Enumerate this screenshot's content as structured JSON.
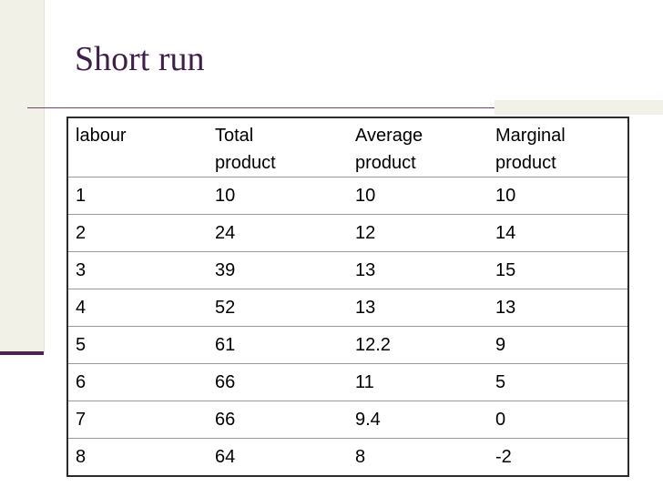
{
  "slide": {
    "title": "Short run"
  },
  "table": {
    "headers": [
      [
        "labour"
      ],
      [
        "Total",
        "product"
      ],
      [
        "Average",
        "product"
      ],
      [
        "Marginal",
        "product"
      ]
    ],
    "rows": [
      [
        "1",
        "10",
        "10",
        "10"
      ],
      [
        "2",
        "24",
        "12",
        "14"
      ],
      [
        "3",
        "39",
        "13",
        "15"
      ],
      [
        "4",
        "52",
        "13",
        "13"
      ],
      [
        "5",
        "61",
        "12.2",
        "9"
      ],
      [
        "6",
        "66",
        "11",
        "5"
      ],
      [
        "7",
        "66",
        "9.4",
        "0"
      ],
      [
        "8",
        "64",
        "8",
        "-2"
      ]
    ]
  },
  "theme": {
    "title_color": "#3f1f4a",
    "accent_color": "#4a2451",
    "side_panel_color": "#f2f1e8"
  }
}
